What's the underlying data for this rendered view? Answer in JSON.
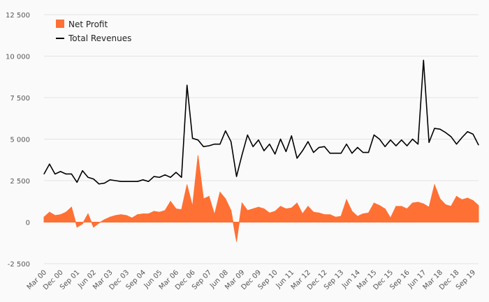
{
  "chart_data": {
    "type": "area",
    "title": "",
    "xlabel": "",
    "ylabel": "",
    "ylim": [
      -2500,
      12500
    ],
    "yticks": [
      -2500,
      0,
      2500,
      5000,
      7500,
      10000,
      12500
    ],
    "ytick_labels": [
      "-2 500",
      "0",
      "2 500",
      "5 000",
      "7 500",
      "10 000",
      "12 500"
    ],
    "xtick_labels": [
      "Mar 00",
      "Dec 00",
      "Sep 01",
      "Jun 02",
      "Mar 03",
      "Dec 03",
      "Sep 04",
      "Jun 05",
      "Mar 06",
      "Dec 06",
      "Sep 07",
      "Jun 08",
      "Mar 09",
      "Dec 09",
      "Sep 10",
      "Jun 11",
      "Mar 12",
      "Dec 12",
      "Sep 13",
      "Jun 14",
      "Mar 15",
      "Dec 15",
      "Sep 16",
      "Jun 17",
      "Mar 18",
      "Dec 18",
      "Sep 19"
    ],
    "x_start": "Mar 00",
    "x_interval": "quarterly",
    "grid": true,
    "legend": "top-left",
    "series": [
      {
        "name": "Net Profit",
        "kind": "area",
        "color": "#ff7034",
        "values": [
          300,
          600,
          400,
          450,
          600,
          900,
          -300,
          -100,
          500,
          -300,
          -50,
          150,
          300,
          400,
          450,
          400,
          250,
          450,
          500,
          500,
          650,
          600,
          700,
          1250,
          800,
          750,
          2250,
          950,
          4000,
          1400,
          1550,
          450,
          1800,
          1400,
          700,
          -1150,
          1150,
          700,
          800,
          900,
          800,
          550,
          650,
          950,
          800,
          850,
          1150,
          500,
          950,
          600,
          550,
          450,
          450,
          300,
          350,
          1350,
          650,
          350,
          500,
          550,
          1150,
          1000,
          800,
          250,
          950,
          950,
          800,
          1150,
          1200,
          1100,
          900,
          2250,
          1400,
          1050,
          950,
          1550,
          1350,
          1450,
          1300,
          1000
        ]
      },
      {
        "name": "Total Revenues",
        "kind": "line",
        "color": "#000000",
        "values": [
          2900,
          3500,
          2900,
          3050,
          2900,
          2900,
          2400,
          3100,
          2700,
          2600,
          2300,
          2350,
          2550,
          2500,
          2450,
          2450,
          2450,
          2450,
          2550,
          2450,
          2750,
          2700,
          2850,
          2700,
          3000,
          2700,
          8250,
          5050,
          4950,
          4550,
          4600,
          4700,
          4700,
          5500,
          4850,
          2750,
          4050,
          5250,
          4550,
          4950,
          4300,
          4700,
          4100,
          5000,
          4250,
          5200,
          3850,
          4300,
          4850,
          4200,
          4500,
          4550,
          4150,
          4150,
          4150,
          4700,
          4150,
          4500,
          4200,
          4200,
          5250,
          5000,
          4550,
          4950,
          4600,
          4950,
          4600,
          5000,
          4700,
          9750,
          4800,
          5650,
          5600,
          5400,
          5150,
          4700,
          5100,
          5450,
          5300,
          4650
        ]
      }
    ]
  }
}
